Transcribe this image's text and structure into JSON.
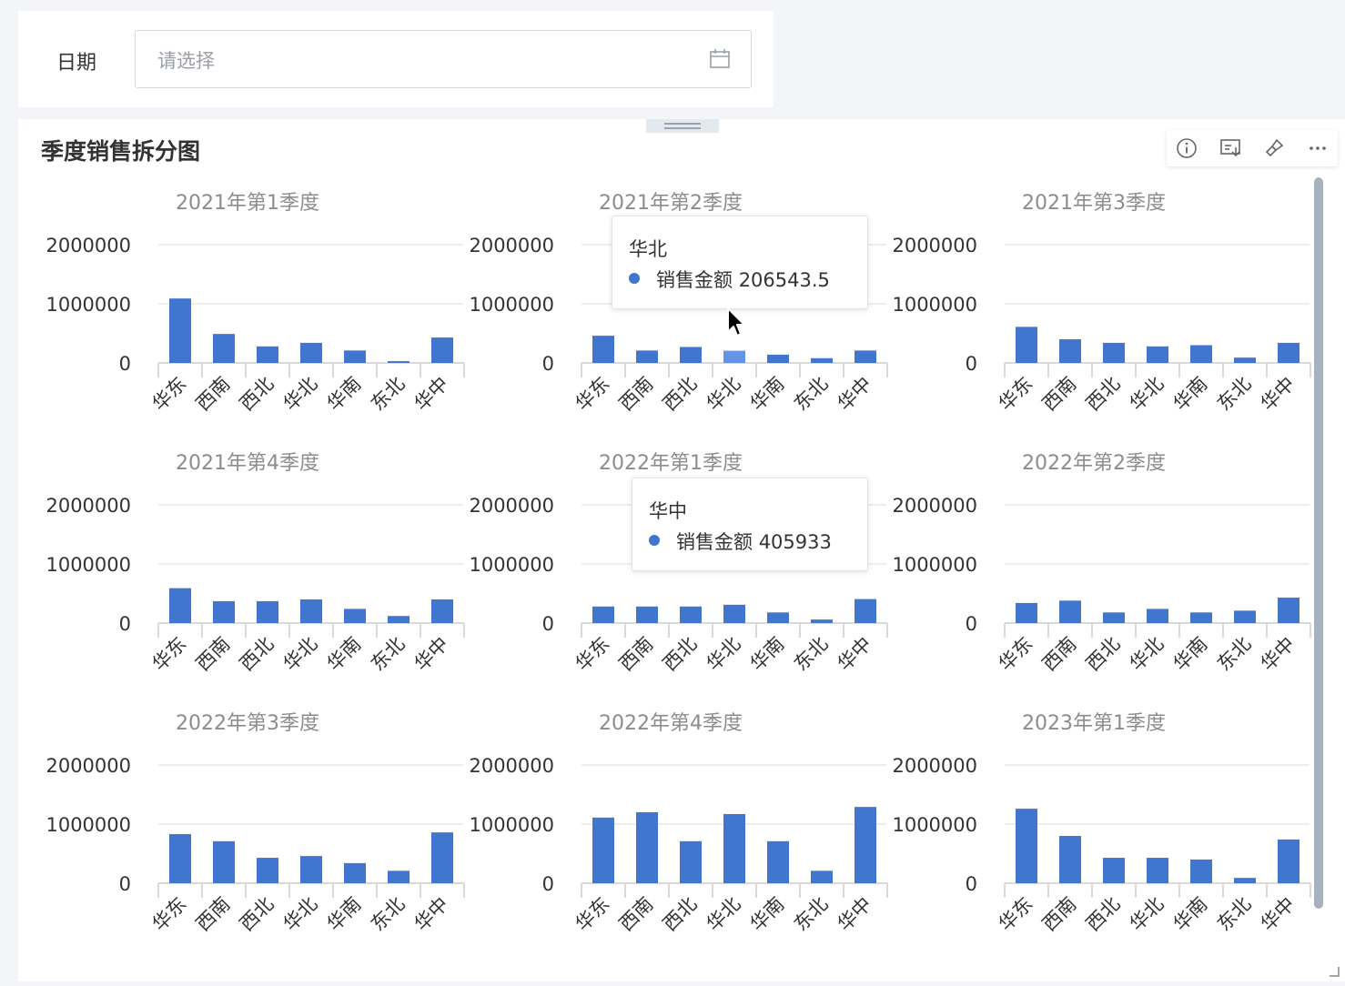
{
  "filter": {
    "label": "日期",
    "placeholder": "请选择"
  },
  "card": {
    "title": "季度销售拆分图"
  },
  "toolbar": {
    "icons": [
      "info-icon",
      "switch-chart-icon",
      "brush-icon",
      "more-icon"
    ]
  },
  "colors": {
    "bar": "#4176cf",
    "bar_hover": "#6594e6",
    "axis": "#d9d9d9",
    "grid": "#e8e8e8",
    "subtitle": "#8c8c8c"
  },
  "tooltips": [
    {
      "category": "华北",
      "measure": "销售金额",
      "value": "206543.5"
    },
    {
      "category": "华中",
      "measure": "销售金额",
      "value": "405933"
    }
  ],
  "chart_data": [
    {
      "type": "bar",
      "title": "2021年第1季度",
      "categories": [
        "华东",
        "西南",
        "西北",
        "华北",
        "华南",
        "东北",
        "华中"
      ],
      "series": [
        {
          "name": "销售金额",
          "values": [
            1090000,
            490000,
            280000,
            340000,
            210000,
            30000,
            430000
          ]
        }
      ],
      "ylim": [
        0,
        2000000
      ],
      "yticks": [
        "0",
        "1000000",
        "2000000"
      ],
      "grid": true
    },
    {
      "type": "bar",
      "title": "2021年第2季度",
      "categories": [
        "华东",
        "西南",
        "西北",
        "华北",
        "华南",
        "东北",
        "华中"
      ],
      "series": [
        {
          "name": "销售金额",
          "values": [
            460000,
            210000,
            270000,
            206543.5,
            140000,
            80000,
            210000
          ]
        }
      ],
      "ylim": [
        0,
        2000000
      ],
      "yticks": [
        "0",
        "1000000",
        "2000000"
      ],
      "grid": true
    },
    {
      "type": "bar",
      "title": "2021年第3季度",
      "categories": [
        "华东",
        "西南",
        "西北",
        "华北",
        "华南",
        "东北",
        "华中"
      ],
      "series": [
        {
          "name": "销售金额",
          "values": [
            610000,
            400000,
            340000,
            280000,
            300000,
            90000,
            340000
          ]
        }
      ],
      "ylim": [
        0,
        2000000
      ],
      "yticks": [
        "0",
        "1000000",
        "2000000"
      ],
      "grid": true
    },
    {
      "type": "bar",
      "title": "2021年第4季度",
      "categories": [
        "华东",
        "西南",
        "西北",
        "华北",
        "华南",
        "东北",
        "华中"
      ],
      "series": [
        {
          "name": "销售金额",
          "values": [
            590000,
            370000,
            370000,
            400000,
            240000,
            120000,
            400000
          ]
        }
      ],
      "ylim": [
        0,
        2000000
      ],
      "yticks": [
        "0",
        "1000000",
        "2000000"
      ],
      "grid": true
    },
    {
      "type": "bar",
      "title": "2022年第1季度",
      "categories": [
        "华东",
        "西南",
        "西北",
        "华北",
        "华南",
        "东北",
        "华中"
      ],
      "series": [
        {
          "name": "销售金额",
          "values": [
            280000,
            280000,
            280000,
            310000,
            180000,
            60000,
            405933
          ]
        }
      ],
      "ylim": [
        0,
        2000000
      ],
      "yticks": [
        "0",
        "1000000",
        "2000000"
      ],
      "grid": true
    },
    {
      "type": "bar",
      "title": "2022年第2季度",
      "categories": [
        "华东",
        "西南",
        "西北",
        "华北",
        "华南",
        "东北",
        "华中"
      ],
      "series": [
        {
          "name": "销售金额",
          "values": [
            340000,
            380000,
            180000,
            240000,
            180000,
            210000,
            430000
          ]
        }
      ],
      "ylim": [
        0,
        2000000
      ],
      "yticks": [
        "0",
        "1000000",
        "2000000"
      ],
      "grid": true
    },
    {
      "type": "bar",
      "title": "2022年第3季度",
      "categories": [
        "华东",
        "西南",
        "西北",
        "华北",
        "华南",
        "东北",
        "华中"
      ],
      "series": [
        {
          "name": "销售金额",
          "values": [
            830000,
            710000,
            430000,
            460000,
            340000,
            210000,
            860000
          ]
        }
      ],
      "ylim": [
        0,
        2000000
      ],
      "yticks": [
        "0",
        "1000000",
        "2000000"
      ],
      "grid": true
    },
    {
      "type": "bar",
      "title": "2022年第4季度",
      "categories": [
        "华东",
        "西南",
        "西北",
        "华北",
        "华南",
        "东北",
        "华中"
      ],
      "series": [
        {
          "name": "销售金额",
          "values": [
            1110000,
            1200000,
            710000,
            1170000,
            710000,
            210000,
            1290000
          ]
        }
      ],
      "ylim": [
        0,
        2000000
      ],
      "yticks": [
        "0",
        "1000000",
        "2000000"
      ],
      "grid": true
    },
    {
      "type": "bar",
      "title": "2023年第1季度",
      "categories": [
        "华东",
        "西南",
        "西北",
        "华北",
        "华南",
        "东北",
        "华中"
      ],
      "series": [
        {
          "name": "销售金额",
          "values": [
            1260000,
            800000,
            430000,
            430000,
            400000,
            90000,
            740000
          ]
        }
      ],
      "ylim": [
        0,
        2000000
      ],
      "yticks": [
        "0",
        "1000000",
        "2000000"
      ],
      "grid": true
    }
  ]
}
